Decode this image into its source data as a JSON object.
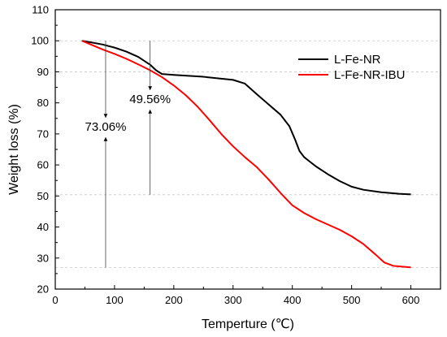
{
  "chart_data": {
    "type": "line",
    "title": "",
    "xlabel": "Temperture (℃)",
    "ylabel": "Weight loss (%)",
    "xlim": [
      0,
      650
    ],
    "ylim": [
      20,
      110
    ],
    "xticks": [
      0,
      100,
      200,
      300,
      400,
      500,
      600
    ],
    "yticks": [
      20,
      30,
      40,
      50,
      60,
      70,
      80,
      90,
      100,
      110
    ],
    "grid": false,
    "legend_position": "top-right",
    "reference_lines_y": [
      100,
      90,
      50.4,
      26.9
    ],
    "series": [
      {
        "name": "L-Fe-NR",
        "color": "#000000",
        "x": [
          45,
          60,
          80,
          100,
          120,
          140,
          160,
          170,
          180,
          200,
          250,
          300,
          320,
          340,
          360,
          380,
          395,
          405,
          412,
          420,
          440,
          460,
          480,
          500,
          520,
          550,
          580,
          600
        ],
        "y": [
          100,
          99.5,
          98.8,
          97.8,
          96.5,
          94.8,
          92.3,
          90.5,
          89.3,
          89,
          88.4,
          87.4,
          86.2,
          82.8,
          79.5,
          76.2,
          72.5,
          68,
          64.5,
          62.5,
          59.5,
          57,
          54.8,
          53,
          52,
          51.2,
          50.7,
          50.5
        ]
      },
      {
        "name": "L-Fe-NR-IBU",
        "color": "#ff0000",
        "x": [
          45,
          60,
          80,
          100,
          120,
          140,
          160,
          180,
          200,
          220,
          240,
          260,
          280,
          300,
          320,
          340,
          360,
          380,
          400,
          420,
          440,
          460,
          480,
          500,
          520,
          540,
          555,
          570,
          600
        ],
        "y": [
          100,
          98.8,
          97.2,
          95.8,
          94.2,
          92.4,
          90.5,
          88.3,
          85.6,
          82.5,
          78.8,
          74.5,
          70,
          66,
          62.5,
          59.3,
          55.3,
          51,
          47,
          44.5,
          42.5,
          40.8,
          39.1,
          37,
          34.5,
          31.2,
          28.6,
          27.5,
          27
        ]
      }
    ],
    "annotations": [
      {
        "text": "73.06%",
        "x": 85,
        "y_from": 100,
        "y_to": 26.9
      },
      {
        "text": "49.56%",
        "x": 160,
        "y_from": 100,
        "y_to": 50.4
      }
    ]
  }
}
